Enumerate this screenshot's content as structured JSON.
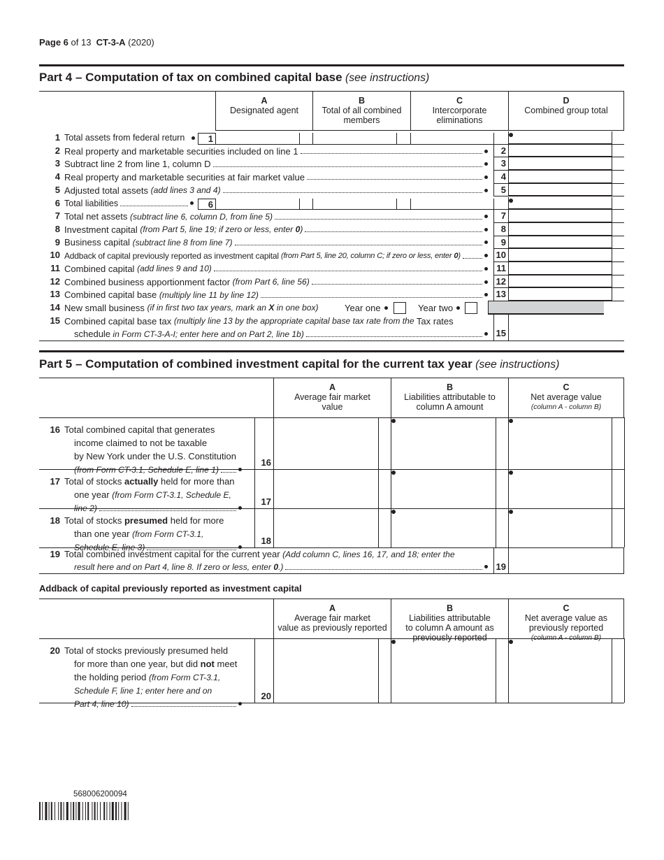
{
  "header": {
    "page": [
      {
        "text": "Page 6",
        "style": "bold"
      },
      {
        "text": " of 13  "
      },
      {
        "text": "CT-3-A",
        "style": "bold"
      },
      {
        "text": " (2020)"
      }
    ]
  },
  "part4": {
    "title": [
      {
        "text": "Part 4 – Computation of tax on combined capital base",
        "style": "bold"
      },
      {
        "text": " (see instructions)",
        "style": "italic"
      }
    ],
    "columns": [
      {
        "letter": "A",
        "label": [
          [
            {
              "text": "Designated agent"
            }
          ]
        ]
      },
      {
        "letter": "B",
        "label": [
          [
            {
              "text": "Total of all combined"
            }
          ],
          [
            {
              "text": "members"
            }
          ]
        ]
      },
      {
        "letter": "C",
        "label": [
          [
            {
              "text": "Intercorporate"
            }
          ],
          [
            {
              "text": "eliminations"
            }
          ]
        ]
      },
      {
        "letter": "D",
        "label": [
          [
            {
              "text": "Combined group total"
            }
          ]
        ]
      }
    ],
    "rows": [
      {
        "num": "1",
        "lines": [
          [
            {
              "text": "Total assets from federal return"
            }
          ]
        ]
      },
      {
        "num": "2",
        "lines": [
          [
            {
              "text": "Real property and marketable securities included on line 1"
            }
          ]
        ]
      },
      {
        "num": "3",
        "lines": [
          [
            {
              "text": "Subtract line 2 from line 1, column D"
            }
          ]
        ]
      },
      {
        "num": "4",
        "lines": [
          [
            {
              "text": "Real property and marketable securities at fair market value"
            }
          ]
        ]
      },
      {
        "num": "5",
        "lines": [
          [
            {
              "text": "Adjusted total assets "
            },
            {
              "text": "(add lines 3 and 4)",
              "style": "italic"
            }
          ]
        ]
      },
      {
        "num": "6",
        "lines": [
          [
            {
              "text": "Total liabilities"
            }
          ]
        ]
      },
      {
        "num": "7",
        "lines": [
          [
            {
              "text": "Total net assets "
            },
            {
              "text": "(subtract line 6, column D, from line 5)",
              "style": "italic"
            }
          ]
        ]
      },
      {
        "num": "8",
        "lines": [
          [
            {
              "text": "Investment capital "
            },
            {
              "text": "(from Part 5, line 19; if zero or less, enter ",
              "style": "italic"
            },
            {
              "text": "0",
              "style": "bolditalic"
            },
            {
              "text": ")",
              "style": "italic"
            }
          ]
        ]
      },
      {
        "num": "9",
        "lines": [
          [
            {
              "text": "Business capital "
            },
            {
              "text": "(subtract line 8 from line 7)",
              "style": "italic"
            }
          ]
        ]
      },
      {
        "num": "10",
        "lines": [
          [
            {
              "text": "Addback of capital previously reported as investment capital "
            },
            {
              "text": "(from Part 5, line 20, column C; if zero or less, enter ",
              "style": "italic"
            },
            {
              "text": "0",
              "style": "bolditalic"
            },
            {
              "text": ")",
              "style": "italic"
            }
          ]
        ]
      },
      {
        "num": "11",
        "lines": [
          [
            {
              "text": "Combined capital "
            },
            {
              "text": "(add lines 9 and 10)",
              "style": "italic"
            }
          ]
        ]
      },
      {
        "num": "12",
        "lines": [
          [
            {
              "text": "Combined business apportionment factor "
            },
            {
              "text": "(from Part 6, line 56)",
              "style": "italic"
            }
          ]
        ]
      },
      {
        "num": "13",
        "lines": [
          [
            {
              "text": "Combined capital base "
            },
            {
              "text": "(multiply line 11 by line 12)",
              "style": "italic"
            }
          ]
        ]
      },
      {
        "num": "14",
        "lines": [
          [
            {
              "text": "New small business "
            },
            {
              "text": "(if in first two tax years, mark an ",
              "style": "italic"
            },
            {
              "text": "X",
              "style": "bolditalic"
            },
            {
              "text": " in one box)",
              "style": "italic"
            }
          ]
        ],
        "options": [
          "Year one",
          "Year two"
        ]
      },
      {
        "num": "15",
        "lines": [
          [
            {
              "text": "Combined capital base tax "
            },
            {
              "text": "(multiply line 13 by the appropriate capital base tax rate from the ",
              "style": "italic"
            },
            {
              "text": "Tax rates"
            }
          ],
          [
            {
              "text": "schedule"
            },
            {
              "text": " in Form CT-3-A-I; enter here and on Part 2, line 1b)",
              "style": "italic"
            }
          ]
        ]
      }
    ]
  },
  "part5": {
    "title": [
      {
        "text": "Part 5 – Computation of combined investment capital for the current tax year",
        "style": "bold"
      },
      {
        "text": " (see instructions)",
        "style": "italic"
      }
    ],
    "columns": [
      {
        "letter": "A",
        "label": [
          [
            {
              "text": "Average fair market"
            }
          ],
          [
            {
              "text": "value"
            }
          ]
        ]
      },
      {
        "letter": "B",
        "label": [
          [
            {
              "text": "Liabilities attributable to"
            }
          ],
          [
            {
              "text": "column A amount"
            }
          ]
        ]
      },
      {
        "letter": "C",
        "label": [
          [
            {
              "text": "Net average value"
            }
          ],
          [
            {
              "text": "(column A - column B)",
              "style": "italic"
            }
          ]
        ]
      }
    ],
    "rows": [
      {
        "num": "16",
        "lines": [
          [
            {
              "text": "Total combined capital that generates"
            }
          ],
          [
            {
              "text": "income claimed to not be taxable"
            }
          ],
          [
            {
              "text": "by New York under the U.S. Constitution"
            }
          ],
          [
            {
              "text": "(from Form CT-3.1, Schedule E, line 1)",
              "style": "italic"
            }
          ]
        ]
      },
      {
        "num": "17",
        "lines": [
          [
            {
              "text": "Total of stocks "
            },
            {
              "text": "actually",
              "style": "bold"
            },
            {
              "text": " held for more than"
            }
          ],
          [
            {
              "text": "one year "
            },
            {
              "text": "(from Form CT-3.1, Schedule E,",
              "style": "italic"
            }
          ],
          [
            {
              "text": "line 2)",
              "style": "italic"
            }
          ]
        ]
      },
      {
        "num": "18",
        "lines": [
          [
            {
              "text": "Total of stocks "
            },
            {
              "text": "presumed",
              "style": "bold"
            },
            {
              "text": " held for more"
            }
          ],
          [
            {
              "text": "than one year "
            },
            {
              "text": "(from Form CT-3.1,",
              "style": "italic"
            }
          ],
          [
            {
              "text": "Schedule E, line 3)",
              "style": "italic"
            }
          ]
        ]
      },
      {
        "num": "19",
        "lines": [
          [
            {
              "text": "Total combined investment capital for the current year "
            },
            {
              "text": "(Add column C, lines 16, 17, and 18; enter the",
              "style": "italic"
            }
          ],
          [
            {
              "text": "result here and on Part 4, line 8. If zero or less, enter ",
              "style": "italic"
            },
            {
              "text": "0",
              "style": "bolditalic"
            },
            {
              "text": ".)",
              "style": "italic"
            }
          ]
        ]
      }
    ]
  },
  "addback": {
    "title": "Addback of capital previously reported as investment capital",
    "columns": [
      {
        "letter": "A",
        "label": [
          [
            {
              "text": "Average fair market"
            }
          ],
          [
            {
              "text": "value as previously reported"
            }
          ]
        ]
      },
      {
        "letter": "B",
        "label": [
          [
            {
              "text": "Liabilities attributable"
            }
          ],
          [
            {
              "text": "to column A amount as"
            }
          ],
          [
            {
              "text": "previously reported"
            }
          ]
        ]
      },
      {
        "letter": "C",
        "label": [
          [
            {
              "text": "Net average value as"
            }
          ],
          [
            {
              "text": "previously reported"
            }
          ],
          [
            {
              "text": "(column A - column B)",
              "style": "italic"
            }
          ]
        ]
      }
    ],
    "rows": [
      {
        "num": "20",
        "lines": [
          [
            {
              "text": "Total of stocks previously presumed held"
            }
          ],
          [
            {
              "text": "for more than one year, but did "
            },
            {
              "text": "not",
              "style": "bold"
            },
            {
              "text": " meet"
            }
          ],
          [
            {
              "text": "the holding period "
            },
            {
              "text": "(from Form CT-3.1,",
              "style": "italic"
            }
          ],
          [
            {
              "text": "Schedule F, line 1; enter here and on",
              "style": "italic"
            }
          ],
          [
            {
              "text": "Part 4, line 10)",
              "style": "italic"
            }
          ]
        ]
      }
    ]
  },
  "footer": {
    "barcode_number": "568006200094"
  }
}
